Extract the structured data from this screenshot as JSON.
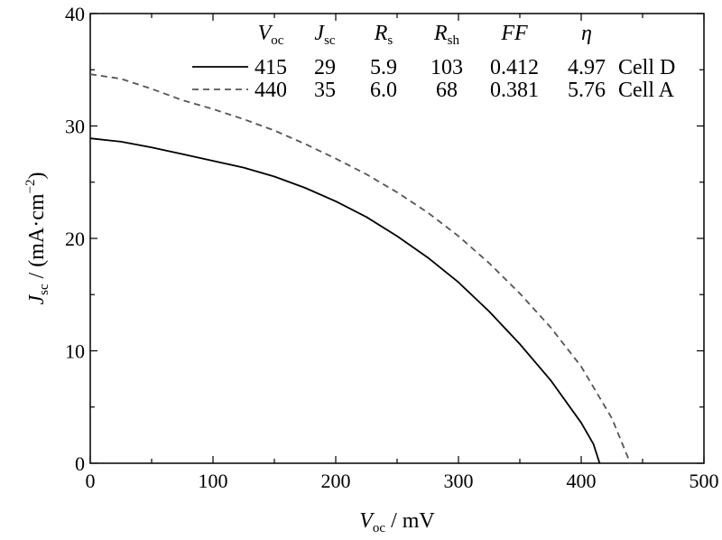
{
  "chart_data": {
    "type": "line",
    "xlabel": {
      "main": "V",
      "sub": "oc",
      "rest": " / mV"
    },
    "ylabel": {
      "main": "J",
      "sub": "sc",
      "rest": " / (mA·cm",
      "sup": "−2",
      "end": ")"
    },
    "xlim": [
      0,
      500
    ],
    "ylim": [
      0,
      40
    ],
    "xticks": [
      "0",
      "100",
      "200",
      "300",
      "400",
      "500"
    ],
    "yticks": [
      "0",
      "10",
      "20",
      "30",
      "40"
    ],
    "grid": false,
    "legend_position": "top-right",
    "table_headers": [
      {
        "main": "V",
        "sub": "oc"
      },
      {
        "main": "J",
        "sub": "sc"
      },
      {
        "main": "R",
        "sub": "s"
      },
      {
        "main": "R",
        "sub": "sh"
      },
      {
        "main": "FF",
        "sub": ""
      },
      {
        "main": "η",
        "sub": ""
      }
    ],
    "series": [
      {
        "name": "Cell D",
        "style": "solid",
        "color": "#000000",
        "params": [
          "415",
          "29",
          "5.9",
          "103",
          "0.412",
          "4.97"
        ],
        "x": [
          0,
          25,
          50,
          75,
          100,
          125,
          150,
          175,
          200,
          225,
          250,
          275,
          300,
          325,
          350,
          375,
          400,
          410,
          415
        ],
        "y": [
          28.9,
          28.6,
          28.1,
          27.5,
          26.9,
          26.3,
          25.5,
          24.5,
          23.3,
          21.9,
          20.2,
          18.3,
          16.1,
          13.5,
          10.6,
          7.4,
          3.6,
          1.7,
          0
        ]
      },
      {
        "name": "Cell A",
        "style": "dashed",
        "color": "#555555",
        "params": [
          "440",
          "35",
          "6.0",
          "68",
          "0.381",
          "5.76"
        ],
        "x": [
          0,
          25,
          50,
          75,
          100,
          125,
          150,
          175,
          200,
          225,
          250,
          275,
          300,
          325,
          350,
          375,
          400,
          425,
          440
        ],
        "y": [
          34.6,
          34.2,
          33.3,
          32.3,
          31.5,
          30.6,
          29.6,
          28.4,
          27.1,
          25.7,
          24.1,
          22.3,
          20.2,
          17.8,
          15.1,
          12.1,
          8.6,
          4.0,
          0
        ]
      }
    ]
  }
}
